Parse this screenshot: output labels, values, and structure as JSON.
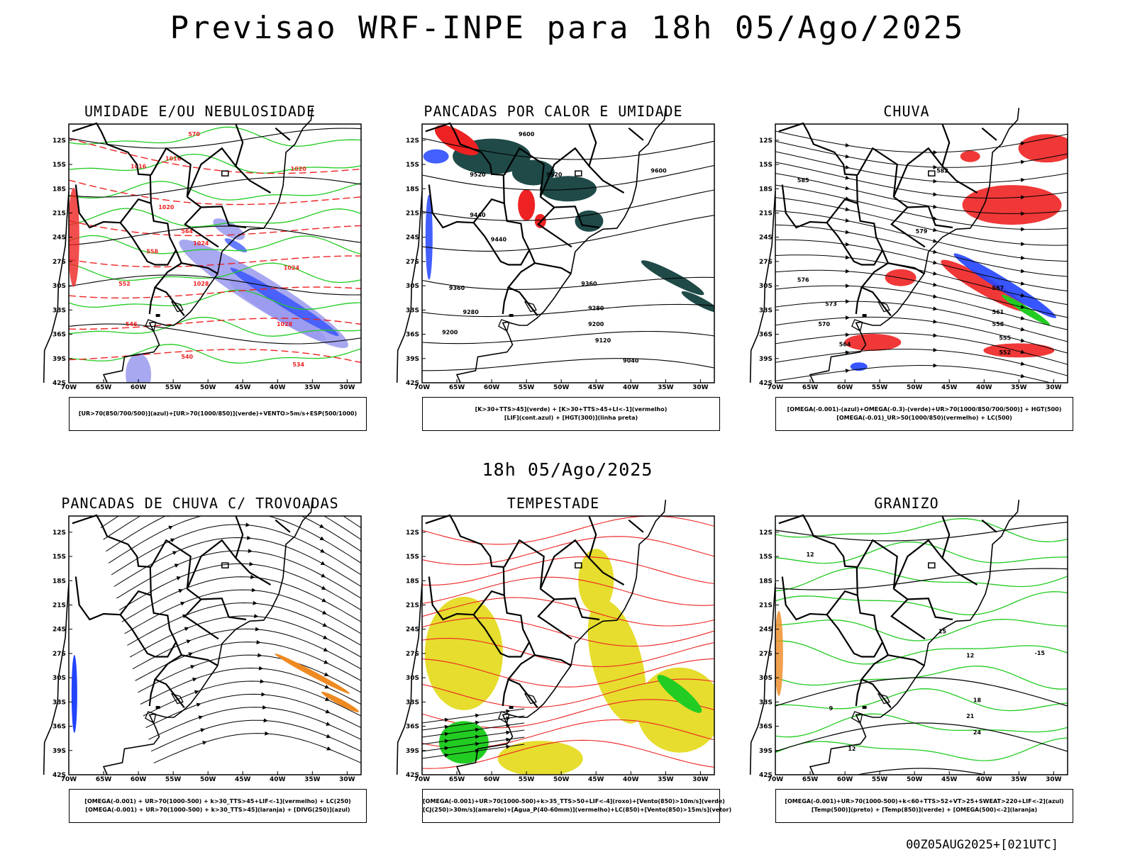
{
  "title": "Previsao WRF-INPE  para 18h 05/Ago/2025",
  "subtitle": "18h 05/Ago/2025",
  "footer": "00Z05AUG2025+[021UTC]",
  "axes": {
    "lat_labels": [
      "12S",
      "15S",
      "18S",
      "21S",
      "24S",
      "27S",
      "30S",
      "33S",
      "36S",
      "39S",
      "42S"
    ],
    "lon_labels": [
      "70W",
      "65W",
      "60W",
      "55W",
      "50W",
      "45W",
      "40W",
      "35W",
      "30W"
    ]
  },
  "colors": {
    "green": "#22cc22",
    "red": "#ee2222",
    "blue": "#2244ff",
    "lavender": "#9999ee",
    "dark_teal": "#1f4a48",
    "yellow": "#e6dd2e",
    "orange": "#ee8a22",
    "black": "#000000"
  },
  "panels": [
    {
      "title": "UMIDADE E/OU NEBULOSIDADE",
      "legend": [
        "[UR>70(850/700/500)](azul)+[UR>70(1000/850)](verde)+VENTO>5m/s+ESP(500/1000)"
      ],
      "labels": [
        "1016",
        "1016",
        "1020",
        "1020",
        "1024",
        "1024",
        "1028",
        "1028",
        "570",
        "564",
        "558",
        "552",
        "546",
        "540",
        "534"
      ]
    },
    {
      "title": "PANCADAS POR CALOR E UMIDADE",
      "legend": [
        "[K>30+TTS>45](verde) + [K>30+TTS>45+LI<-1](vermelho)",
        "[LIF](cont.azul) + [HGT(300)](linha preta)"
      ],
      "labels": [
        "9600",
        "9600",
        "9520",
        "9520",
        "9440",
        "9440",
        "9360",
        "9360",
        "9280",
        "9280",
        "9200",
        "9200",
        "9120",
        "9040"
      ]
    },
    {
      "title": "CHUVA",
      "legend": [
        "[OMEGA(-0.001)-(azul)+OMEGA(-0.3)-(verde)+UR>70(1000/850/700/500)] + HGT(500)",
        "[OMEGA(-0.01)_UR>50(1000/850)(vermelho) + LC(500)"
      ],
      "labels": [
        "585",
        "582",
        "579",
        "576",
        "573",
        "570",
        "567",
        "564",
        "561",
        "558",
        "555",
        "552"
      ]
    },
    {
      "title": "PANCADAS DE CHUVA C/ TROVOADAS",
      "legend": [
        "[OMEGA(-0.001) + UR>70(1000-500) + k>30_TTS>45+LIF<-1](vermelho) + LC(250)",
        "[OMEGA(-0.001) + UR>70(1000-500) + k>30_TTS>45](laranja) + [DIVG(250)](azul)"
      ],
      "labels": []
    },
    {
      "title": "TEMPESTADE",
      "legend": [
        "[OMEGA(-0.001)+UR>70(1000-500)+k>35_TTS>50+LIF<-4](roxo)+[Vento(850)>10m/s](verde)",
        "[CJ(250)>30m/s](amarelo)+[Agua_P(40-60mm)](vermelho)+LC(850)+[Vento(850)>15m/s](vetor)"
      ],
      "labels": []
    },
    {
      "title": "GRANIZO",
      "legend": [
        "[OMEGA(-0.001)+UR>70(1000-500)+k<60+TTS>52+VT>25+SWEAT>220+LIF<-2](azul)",
        "[Temp(500)](preto) + [Temp(850)](verde) + [OMEGA(500)<-2](laranja)"
      ],
      "labels": [
        "12",
        "15",
        "12",
        "18",
        "21",
        "24",
        "9",
        "12",
        "-15"
      ]
    }
  ]
}
